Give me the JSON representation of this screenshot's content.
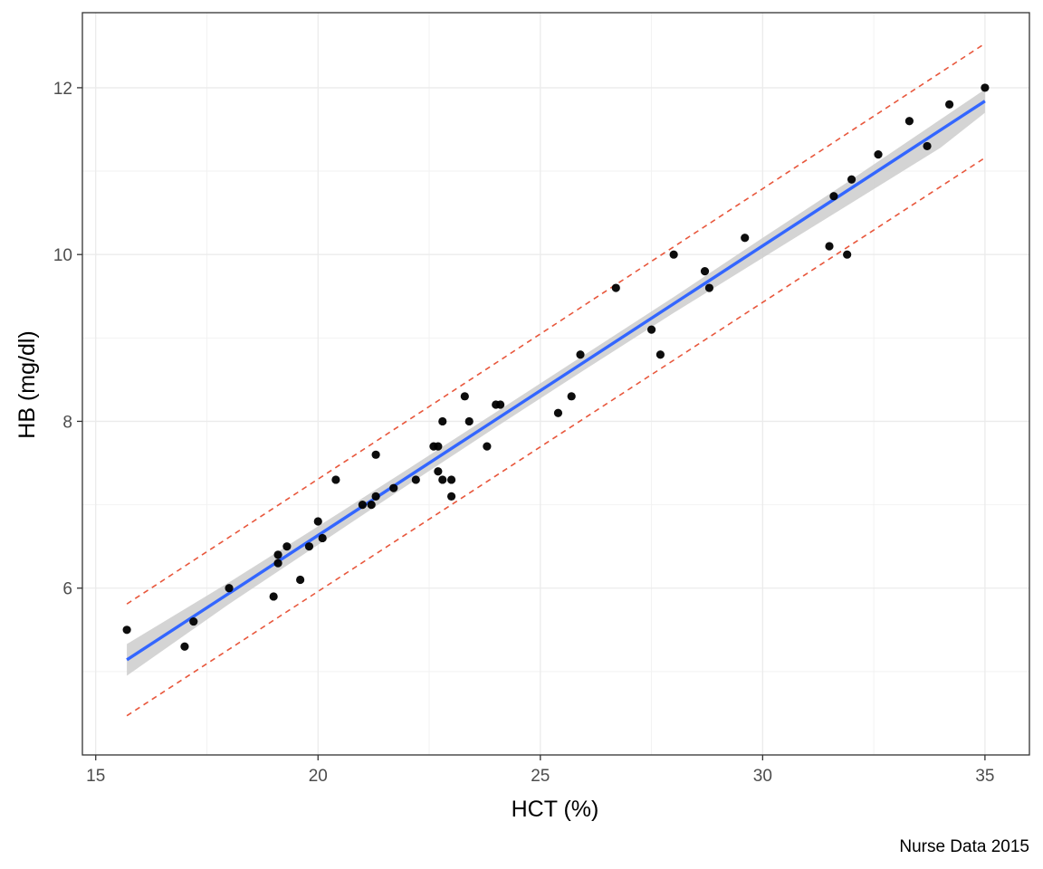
{
  "chart_data": {
    "type": "scatter",
    "xlabel": "HCT (%)",
    "ylabel": "HB (mg/dl)",
    "caption": "Nurse Data 2015",
    "xlim": [
      14.7,
      36.0
    ],
    "ylim": [
      4.0,
      12.9
    ],
    "x_ticks": [
      15,
      20,
      25,
      30,
      35
    ],
    "y_ticks": [
      6,
      8,
      10,
      12
    ],
    "x_tick_labels": [
      "15",
      "20",
      "25",
      "30",
      "35"
    ],
    "y_tick_labels": [
      "6",
      "8",
      "10",
      "12"
    ],
    "grid": true,
    "points": [
      {
        "x": 15.7,
        "y": 5.5
      },
      {
        "x": 17.0,
        "y": 5.3
      },
      {
        "x": 17.2,
        "y": 5.6
      },
      {
        "x": 18.0,
        "y": 6.0
      },
      {
        "x": 19.0,
        "y": 5.9
      },
      {
        "x": 19.1,
        "y": 6.3
      },
      {
        "x": 19.1,
        "y": 6.4
      },
      {
        "x": 19.3,
        "y": 6.5
      },
      {
        "x": 19.6,
        "y": 6.1
      },
      {
        "x": 19.8,
        "y": 6.5
      },
      {
        "x": 20.0,
        "y": 6.8
      },
      {
        "x": 20.1,
        "y": 6.6
      },
      {
        "x": 20.4,
        "y": 7.3
      },
      {
        "x": 21.0,
        "y": 7.0
      },
      {
        "x": 21.2,
        "y": 7.0
      },
      {
        "x": 21.3,
        "y": 7.1
      },
      {
        "x": 21.3,
        "y": 7.6
      },
      {
        "x": 21.7,
        "y": 7.2
      },
      {
        "x": 22.2,
        "y": 7.3
      },
      {
        "x": 22.6,
        "y": 7.7
      },
      {
        "x": 22.7,
        "y": 7.4
      },
      {
        "x": 22.7,
        "y": 7.7
      },
      {
        "x": 22.8,
        "y": 7.3
      },
      {
        "x": 22.8,
        "y": 8.0
      },
      {
        "x": 23.0,
        "y": 7.3
      },
      {
        "x": 23.0,
        "y": 7.1
      },
      {
        "x": 23.3,
        "y": 8.3
      },
      {
        "x": 23.4,
        "y": 8.0
      },
      {
        "x": 23.8,
        "y": 7.7
      },
      {
        "x": 24.0,
        "y": 8.2
      },
      {
        "x": 24.1,
        "y": 8.2
      },
      {
        "x": 25.4,
        "y": 8.1
      },
      {
        "x": 25.7,
        "y": 8.3
      },
      {
        "x": 25.9,
        "y": 8.8
      },
      {
        "x": 26.7,
        "y": 9.6
      },
      {
        "x": 27.5,
        "y": 9.1
      },
      {
        "x": 27.7,
        "y": 8.8
      },
      {
        "x": 28.0,
        "y": 10.0
      },
      {
        "x": 28.7,
        "y": 9.8
      },
      {
        "x": 28.8,
        "y": 9.6
      },
      {
        "x": 29.6,
        "y": 10.2
      },
      {
        "x": 31.5,
        "y": 10.1
      },
      {
        "x": 31.6,
        "y": 10.7
      },
      {
        "x": 31.9,
        "y": 10.0
      },
      {
        "x": 32.0,
        "y": 10.9
      },
      {
        "x": 32.6,
        "y": 11.2
      },
      {
        "x": 33.3,
        "y": 11.6
      },
      {
        "x": 33.7,
        "y": 11.3
      },
      {
        "x": 34.2,
        "y": 11.8
      },
      {
        "x": 35.0,
        "y": 12.0
      }
    ],
    "fit_line": {
      "x": [
        15.7,
        35.0
      ],
      "y": [
        5.14,
        11.84
      ]
    },
    "confidence_band": {
      "x": [
        15.7,
        18.0,
        20.0,
        22.0,
        24.0,
        26.0,
        28.0,
        30.0,
        32.0,
        34.0,
        35.0
      ],
      "upper": [
        5.33,
        6.07,
        6.74,
        7.42,
        8.11,
        8.8,
        9.49,
        10.2,
        10.9,
        11.62,
        11.98
      ],
      "lower": [
        4.95,
        5.81,
        6.52,
        7.23,
        7.93,
        8.62,
        9.3,
        9.96,
        10.62,
        11.28,
        11.7
      ]
    },
    "prediction_upper": {
      "x": [
        15.7,
        35.0
      ],
      "y": [
        5.81,
        12.53
      ]
    },
    "prediction_lower": {
      "x": [
        15.7,
        35.0
      ],
      "y": [
        4.47,
        11.16
      ]
    },
    "colors": {
      "points": "#000000",
      "fit_line": "#3366ff",
      "confidence_band": "#cccccc",
      "prediction_lines": "#e8573c",
      "grid_major": "#ebebeb",
      "grid_minor": "#f2f2f2",
      "panel_border": "#333333",
      "tick_label": "#4d4d4d"
    }
  }
}
